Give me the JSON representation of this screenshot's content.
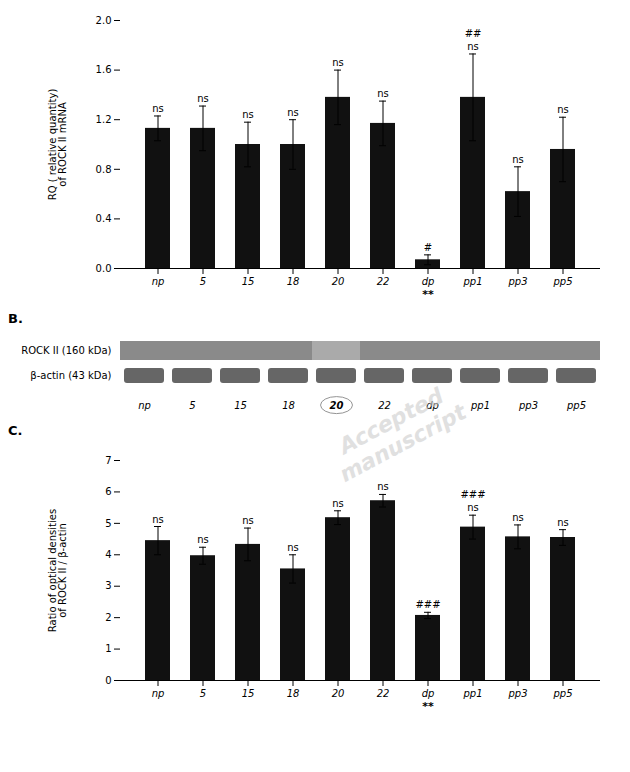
{
  "chart_data": [
    {
      "type": "bar",
      "categories": [
        "np",
        "5",
        "15",
        "18",
        "20",
        "22",
        "dp",
        "pp1",
        "pp3",
        "pp5"
      ],
      "values": [
        1.13,
        1.13,
        1.0,
        1.0,
        1.38,
        1.17,
        0.07,
        1.38,
        0.62,
        0.96
      ],
      "errors": [
        0.1,
        0.18,
        0.18,
        0.2,
        0.22,
        0.18,
        0.04,
        0.35,
        0.2,
        0.26
      ],
      "color": "#111111",
      "ylabel": "RQ ( relative quantity)\nof ROCK II mRNA",
      "ylim": [
        0,
        2.0
      ],
      "yticks": [
        {
          "value": 0,
          "label": "0.0"
        },
        0.4,
        0.8,
        1.2,
        1.6,
        {
          "value": 2.0,
          "label": "2.0"
        }
      ],
      "ns_labels": [
        "ns",
        "ns",
        "ns",
        "ns",
        "ns",
        "ns",
        null,
        "ns",
        "ns",
        "ns"
      ],
      "hash_labels": [
        null,
        null,
        null,
        null,
        null,
        null,
        "#",
        "##",
        null,
        null
      ],
      "star_labels": [
        null,
        null,
        null,
        null,
        null,
        null,
        "**",
        null,
        null,
        null
      ],
      "grid": false
    },
    {
      "type": "gel",
      "title": "B.",
      "categories": [
        "np",
        "5",
        "15",
        "18",
        "20",
        "22",
        "dp",
        "pp1",
        "pp3",
        "pp5"
      ],
      "band_labels": [
        "ROCK II (160 kDa)",
        "β-actin (43 kDa)"
      ],
      "highlight": "20"
    },
    {
      "type": "bar",
      "title": "C.",
      "categories": [
        "np",
        "5",
        "15",
        "18",
        "20",
        "22",
        "dp",
        "pp1",
        "pp3",
        "pp5"
      ],
      "values": [
        4.45,
        3.97,
        4.33,
        3.55,
        5.18,
        5.72,
        2.07,
        4.88,
        4.57,
        4.55
      ],
      "errors": [
        0.45,
        0.27,
        0.52,
        0.45,
        0.22,
        0.2,
        0.1,
        0.38,
        0.38,
        0.25
      ],
      "color": "#111111",
      "ylabel": "Ratio of optical densities\nof ROCK II / β-actin",
      "ylim": [
        0,
        7
      ],
      "yticks": [
        0,
        1,
        2,
        3,
        4,
        5,
        6,
        7
      ],
      "ns_labels": [
        "ns",
        "ns",
        "ns",
        "ns",
        "ns",
        "ns",
        null,
        "ns",
        "ns",
        "ns"
      ],
      "hash_labels": [
        null,
        null,
        null,
        null,
        null,
        null,
        "###",
        "###",
        null,
        null
      ],
      "star_labels": [
        null,
        null,
        null,
        null,
        null,
        null,
        "**",
        null,
        null,
        null
      ],
      "grid": false
    }
  ],
  "watermark": "Accepted\nmanuscript"
}
